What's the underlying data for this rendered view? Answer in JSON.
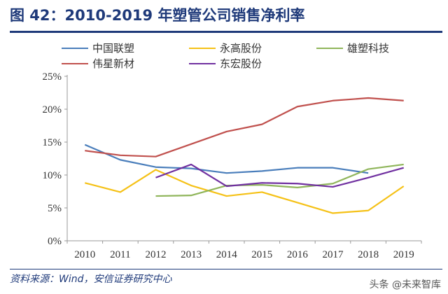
{
  "title": "图 42：2010-2019 年塑管公司销售净利率",
  "source": "资料来源：Wind，安信证券研究中心",
  "watermark": "头条 @未来智库",
  "chart_data": {
    "type": "line",
    "title": "图 42：2010-2019 年塑管公司销售净利率",
    "x": [
      "2010",
      "2011",
      "2012",
      "2013",
      "2014",
      "2015",
      "2016",
      "2017",
      "2018",
      "2019"
    ],
    "yticks": [
      "0%",
      "5%",
      "10%",
      "15%",
      "20%",
      "25%"
    ],
    "ylim": [
      0,
      25
    ],
    "yunit": "%",
    "grid": false,
    "legend": "top",
    "series": [
      {
        "name": "中国联塑",
        "color": "#4a7ebb",
        "values": [
          14.6,
          12.3,
          11.2,
          11.0,
          10.3,
          10.6,
          11.1,
          11.1,
          10.3,
          null
        ]
      },
      {
        "name": "永高股份",
        "color": "#f5c116",
        "values": [
          8.8,
          7.4,
          10.8,
          8.4,
          6.8,
          7.4,
          5.8,
          4.2,
          4.6,
          8.3
        ]
      },
      {
        "name": "雄塑科技",
        "color": "#8fb55a",
        "values": [
          null,
          null,
          6.8,
          6.9,
          8.4,
          8.5,
          8.1,
          8.7,
          10.9,
          11.6
        ]
      },
      {
        "name": "伟星新材",
        "color": "#c0504d",
        "values": [
          13.7,
          13.0,
          12.8,
          14.7,
          16.6,
          17.7,
          20.4,
          21.3,
          21.7,
          21.3
        ]
      },
      {
        "name": "东宏股份",
        "color": "#7030a0",
        "values": [
          null,
          null,
          9.6,
          11.6,
          8.3,
          8.8,
          8.7,
          8.2,
          9.6,
          11.1
        ]
      }
    ]
  }
}
